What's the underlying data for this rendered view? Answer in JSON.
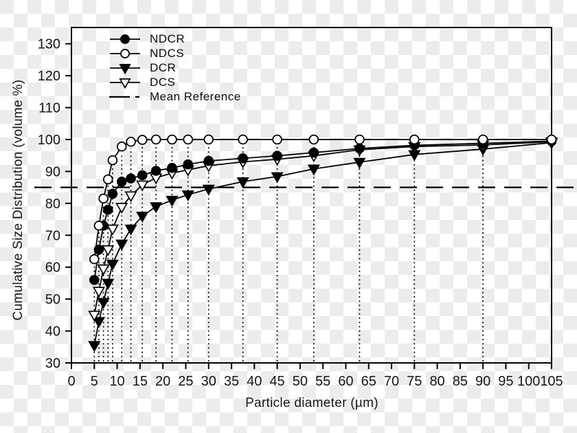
{
  "figure": {
    "legend": [
      {
        "label": "NDCR",
        "marker": "filled-circle"
      },
      {
        "label": "NDCS",
        "marker": "open-circle"
      },
      {
        "label": "DCR",
        "marker": "filled-triangle-down"
      },
      {
        "label": "DCS",
        "marker": "open-triangle-down"
      },
      {
        "label": "Mean Reference",
        "marker": "dashed-line"
      }
    ]
  },
  "chart_data": {
    "type": "line",
    "title": "",
    "xlabel": "Particle diameter (µm)",
    "ylabel": "Cumulative Size Distribution (volume %)",
    "xlim": [
      0,
      105
    ],
    "ylim": [
      30,
      135
    ],
    "x_ticks": [
      0,
      5,
      10,
      15,
      20,
      25,
      30,
      35,
      40,
      45,
      50,
      55,
      60,
      65,
      70,
      75,
      80,
      85,
      90,
      95,
      100,
      105
    ],
    "y_ticks": [
      30,
      40,
      50,
      60,
      70,
      80,
      90,
      100,
      110,
      120,
      130
    ],
    "grid": "off",
    "drop_lines": "dotted vertical from each NDCS point to x-axis",
    "legend_position": "top-left inside plot",
    "mean_reference": 85,
    "x": [
      5,
      6,
      7,
      8,
      9,
      11,
      13,
      15.5,
      18.5,
      22,
      25.5,
      30,
      37.5,
      45,
      53,
      63,
      75,
      90,
      105
    ],
    "series": [
      {
        "name": "NDCR",
        "marker": "filled-circle",
        "values": [
          56,
          65.5,
          73,
          78,
          83,
          86.8,
          87.8,
          88.8,
          90.2,
          91.1,
          92.2,
          93.3,
          94.1,
          94.9,
          95.9,
          97.2,
          98.2,
          98.8,
          99.5
        ]
      },
      {
        "name": "NDCS",
        "marker": "open-circle",
        "values": [
          62.5,
          73,
          81.5,
          87.5,
          93.5,
          97.8,
          99.3,
          99.9,
          100,
          100,
          100,
          100,
          100,
          100,
          100,
          100,
          100,
          100,
          100
        ]
      },
      {
        "name": "DCR",
        "marker": "filled-triangle-down",
        "values": [
          35.5,
          43,
          49,
          55,
          61,
          67.3,
          72,
          76,
          79,
          81,
          82.7,
          84.5,
          86.8,
          88.4,
          90.8,
          92.9,
          95.3,
          97,
          99
        ]
      },
      {
        "name": "DCS",
        "marker": "open-triangle-down",
        "values": [
          45,
          52.5,
          59.5,
          65.5,
          72,
          78.8,
          82.4,
          85.8,
          88,
          89.5,
          90.5,
          91.8,
          93,
          93.8,
          94.9,
          96.8,
          97.8,
          98.3,
          99.3
        ]
      }
    ]
  },
  "colors": {
    "stroke": "#000000",
    "text": "#171717",
    "marker_open_fill": "#ffffff",
    "checker_light": "#ffffff",
    "checker_dark": "#ececec"
  }
}
